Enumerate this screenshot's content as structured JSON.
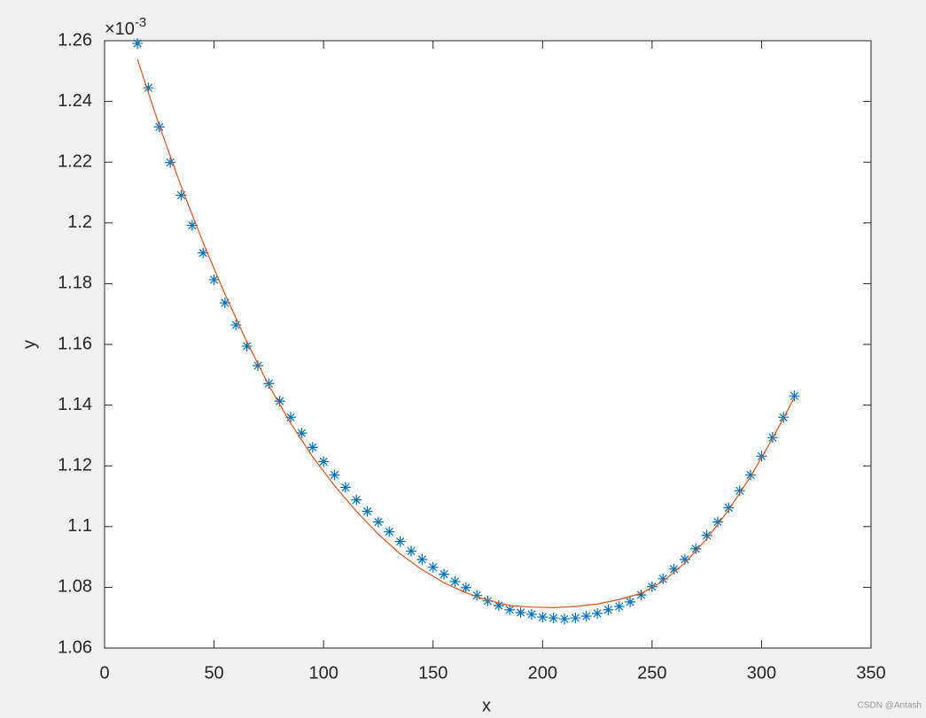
{
  "chart_data": {
    "type": "line",
    "xlabel": "x",
    "ylabel": "y",
    "y_scale_base": "×10",
    "y_scale_exponent": "-3",
    "watermark": "CSDN @Antash",
    "xlim": [
      0,
      350
    ],
    "xticks": [
      0,
      50,
      100,
      150,
      200,
      250,
      300,
      350
    ],
    "ylim": [
      1.06,
      1.26
    ],
    "yticks": [
      1.06,
      1.08,
      1.1,
      1.12,
      1.14,
      1.16,
      1.18,
      1.2,
      1.22,
      1.24,
      1.26
    ],
    "grid": false,
    "series": [
      {
        "color": "#0072BD",
        "marker": "asterisk",
        "line": false,
        "x": [
          15,
          20,
          25,
          30,
          35,
          40,
          45,
          50,
          55,
          60,
          65,
          70,
          75,
          80,
          85,
          90,
          95,
          100,
          105,
          110,
          115,
          120,
          125,
          130,
          135,
          140,
          145,
          150,
          155,
          160,
          165,
          170,
          175,
          180,
          185,
          190,
          195,
          200,
          205,
          210,
          215,
          220,
          225,
          230,
          235,
          240,
          245,
          250,
          255,
          260,
          265,
          270,
          275,
          280,
          285,
          290,
          295,
          300,
          305,
          310,
          315
        ],
        "values": [
          1.2591,
          1.2445,
          1.2316,
          1.2199,
          1.2091,
          1.1992,
          1.1901,
          1.1813,
          1.1737,
          1.1664,
          1.1594,
          1.153,
          1.1471,
          1.1413,
          1.136,
          1.1308,
          1.1261,
          1.1214,
          1.117,
          1.1129,
          1.1088,
          1.105,
          1.1015,
          1.0983,
          1.0951,
          1.0919,
          1.0892,
          1.0866,
          1.0843,
          1.0819,
          1.0799,
          1.0773,
          1.0755,
          1.074,
          1.0726,
          1.0717,
          1.0711,
          1.0702,
          1.0699,
          1.0696,
          1.0699,
          1.0705,
          1.0714,
          1.0726,
          1.0737,
          1.0752,
          1.0775,
          1.0802,
          1.0828,
          1.086,
          1.0892,
          1.0927,
          1.0971,
          1.1015,
          1.1062,
          1.1118,
          1.117,
          1.1232,
          1.1293,
          1.136,
          1.143
        ]
      },
      {
        "color": "#D95319",
        "marker": "none",
        "line": true,
        "x": [
          15,
          25,
          35,
          45,
          55,
          65,
          75,
          85,
          95,
          105,
          115,
          125,
          135,
          145,
          155,
          165,
          175,
          185,
          195,
          205,
          215,
          225,
          235,
          245,
          255,
          265,
          275,
          285,
          295,
          305,
          315
        ],
        "values": [
          1.2539,
          1.232,
          1.212,
          1.1935,
          1.1765,
          1.1608,
          1.1465,
          1.134,
          1.123,
          1.1135,
          1.105,
          1.0975,
          1.091,
          1.0858,
          1.0815,
          1.0782,
          1.0757,
          1.074,
          1.0735,
          1.0733,
          1.0737,
          1.0745,
          1.076,
          1.078,
          1.082,
          1.088,
          1.096,
          1.1055,
          1.1165,
          1.129,
          1.1425
        ]
      }
    ]
  }
}
